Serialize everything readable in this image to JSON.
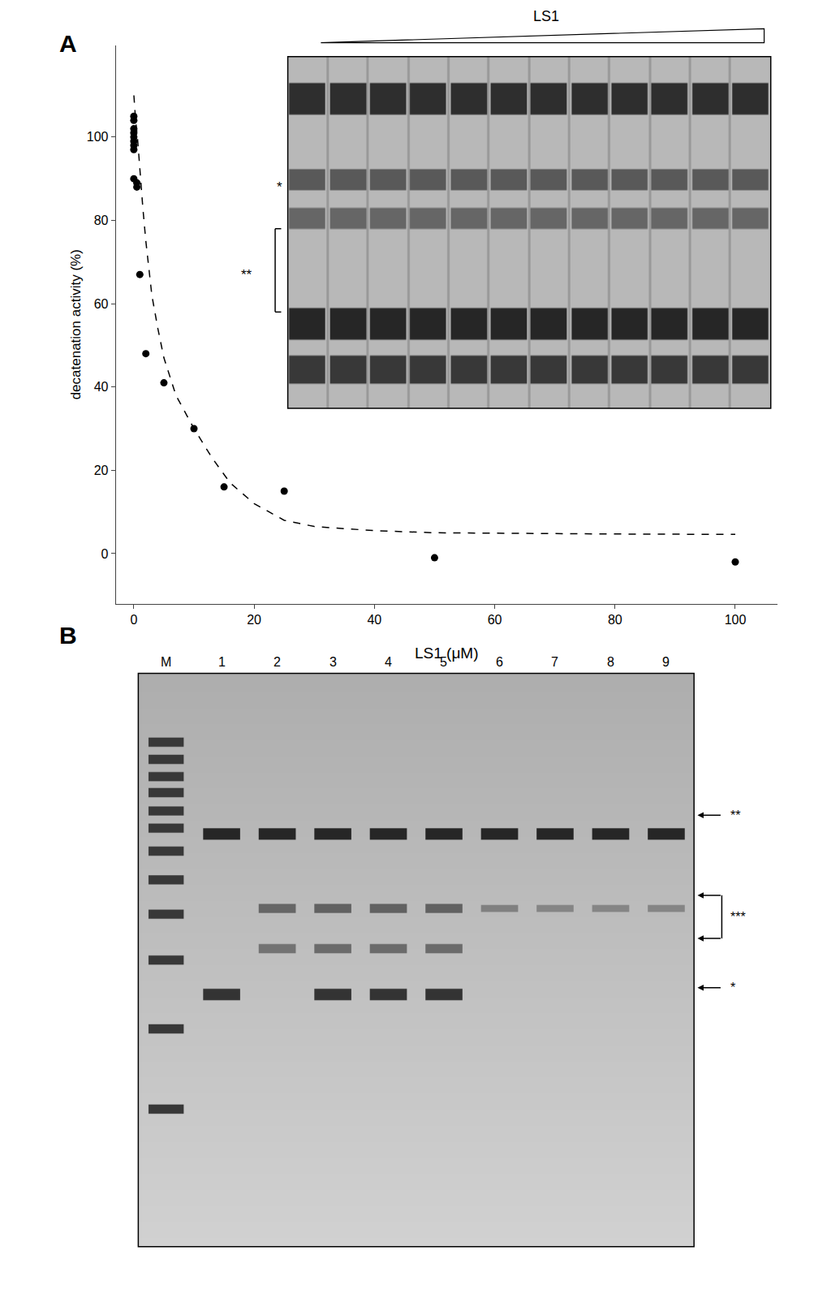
{
  "chart_data": [
    {
      "type": "scatter",
      "title": "A",
      "xlabel": "LS1 (μM)",
      "ylabel": "decatenation activity (%)",
      "series": [
        {
          "type": "scatter",
          "color": "#000000",
          "marker": "circle",
          "x": [
            0.0,
            0.0,
            0.0,
            0.0,
            0.0,
            0.0,
            0.0,
            0.0,
            0.0,
            0.5,
            0.5,
            1.0,
            2.0,
            5.0,
            10.0,
            15.0,
            25.0,
            50.0,
            100.0
          ],
          "values": [
            105,
            104,
            102,
            101,
            100,
            99,
            98,
            97,
            90,
            89,
            88,
            67,
            48,
            41,
            30,
            16,
            15,
            -1,
            -2
          ]
        },
        {
          "type": "line",
          "color": "#000000",
          "line_style": "dashed",
          "x": [
            0.01,
            0.1,
            0.3,
            0.6,
            1.0,
            1.5,
            2.0,
            3.0,
            4.0,
            5.0,
            7.0,
            10.0,
            13.0,
            16.0,
            20.0,
            25.0,
            30.0,
            40.0,
            50.0,
            65.0,
            80.0,
            100.0
          ],
          "values": [
            110,
            108,
            104,
            100,
            92,
            83,
            75,
            62,
            54,
            47,
            38,
            30,
            23,
            17,
            12,
            8,
            6.5,
            5.5,
            5.0,
            4.8,
            4.7,
            4.6
          ]
        }
      ],
      "xlim": [
        -3,
        107
      ],
      "ylim": [
        -12,
        122
      ],
      "xticks": [
        0,
        20,
        40,
        60,
        80,
        100
      ],
      "yticks": [
        0,
        20,
        40,
        60,
        80,
        100
      ],
      "grid": false,
      "annotations": [
        "LS1",
        "*",
        "**"
      ]
    },
    {
      "type": "gel",
      "title": "B",
      "categories": [
        "M",
        "1",
        "2",
        "3",
        "4",
        "5",
        "6",
        "7",
        "8",
        "9"
      ],
      "annotations": [
        "**",
        "***",
        "*"
      ]
    }
  ]
}
